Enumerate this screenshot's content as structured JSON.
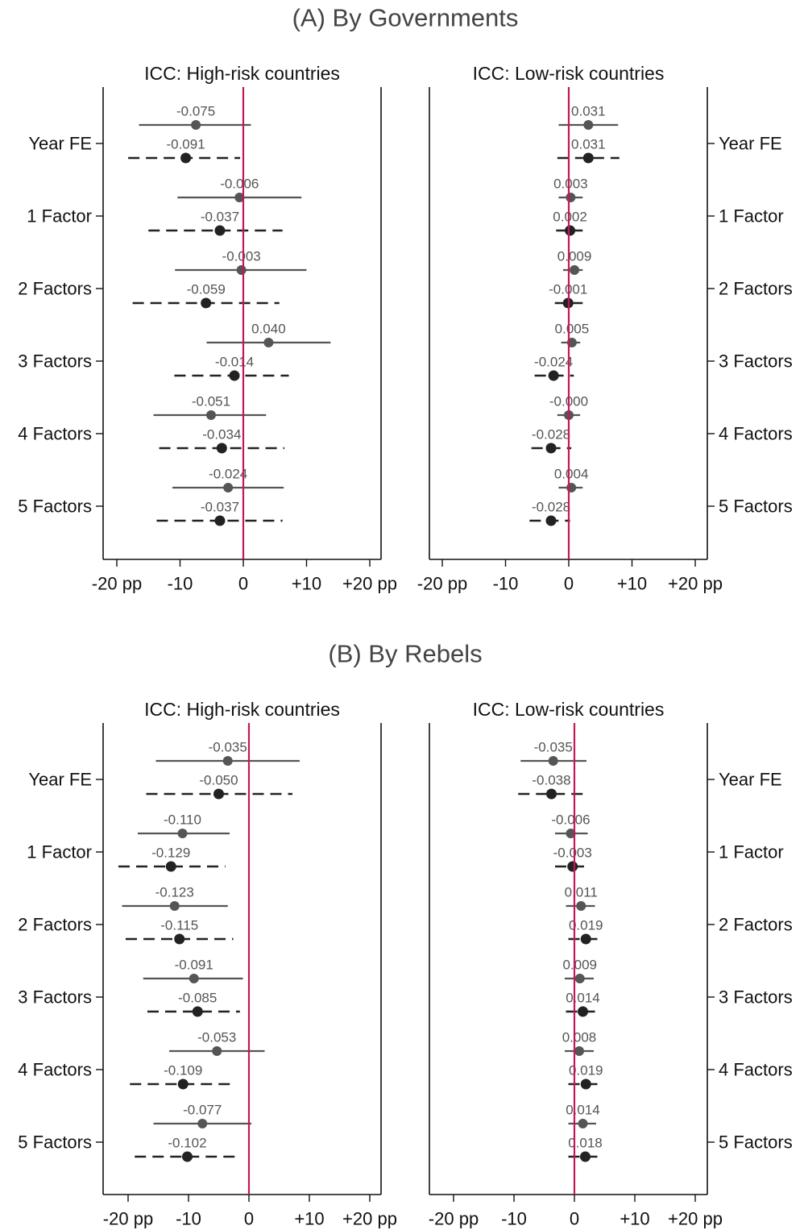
{
  "sections": [
    {
      "title": "(A) By Governments",
      "panels": [
        {
          "title": "ICC: High-risk countries",
          "rows": [
            {
              "label": "Year FE",
              "solid": {
                "est": -0.075,
                "lo": -16.5,
                "hi": 1.2
              },
              "dashed": {
                "est": -0.091,
                "lo": -18.2,
                "hi": -0.5
              }
            },
            {
              "label": "1 Factor",
              "solid": {
                "est": -0.006,
                "lo": -10.4,
                "hi": 9.2
              },
              "dashed": {
                "est": -0.037,
                "lo": -15.0,
                "hi": 6.2
              }
            },
            {
              "label": "2 Factors",
              "solid": {
                "est": -0.003,
                "lo": -10.8,
                "hi": 10.0
              },
              "dashed": {
                "est": -0.059,
                "lo": -17.5,
                "hi": 5.7
              }
            },
            {
              "label": "3 Factors",
              "solid": {
                "est": 0.04,
                "lo": -5.8,
                "hi": 13.8
              },
              "dashed": {
                "est": -0.014,
                "lo": -10.9,
                "hi": 7.2
              }
            },
            {
              "label": "4 Factors",
              "solid": {
                "est": -0.051,
                "lo": -14.2,
                "hi": 3.6
              },
              "dashed": {
                "est": -0.034,
                "lo": -13.3,
                "hi": 6.5
              }
            },
            {
              "label": "5 Factors",
              "solid": {
                "est": -0.024,
                "lo": -11.2,
                "hi": 6.4
              },
              "dashed": {
                "est": -0.037,
                "lo": -13.7,
                "hi": 6.2
              }
            }
          ]
        },
        {
          "title": "ICC: Low-risk countries",
          "rows": [
            {
              "label": "Year FE",
              "solid": {
                "est": 0.031,
                "lo": -1.6,
                "hi": 7.8
              },
              "dashed": {
                "est": 0.031,
                "lo": -1.8,
                "hi": 8.0
              }
            },
            {
              "label": "1 Factor",
              "solid": {
                "est": 0.003,
                "lo": -1.6,
                "hi": 2.2
              },
              "dashed": {
                "est": 0.002,
                "lo": -2.0,
                "hi": 2.2
              }
            },
            {
              "label": "2 Factors",
              "solid": {
                "est": 0.009,
                "lo": -0.9,
                "hi": 2.2
              },
              "dashed": {
                "est": -0.001,
                "lo": -2.2,
                "hi": 2.2
              }
            },
            {
              "label": "3 Factors",
              "solid": {
                "est": 0.005,
                "lo": -1.2,
                "hi": 1.8
              },
              "dashed": {
                "est": -0.024,
                "lo": -5.4,
                "hi": 0.8
              }
            },
            {
              "label": "4 Factors",
              "solid": {
                "est": -0.0,
                "lo": -1.8,
                "hi": 1.8
              },
              "dashed": {
                "est": -0.028,
                "lo": -5.9,
                "hi": 0.4
              }
            },
            {
              "label": "5 Factors",
              "solid": {
                "est": 0.004,
                "lo": -1.6,
                "hi": 2.2
              },
              "dashed": {
                "est": -0.028,
                "lo": -6.2,
                "hi": 0.2
              }
            }
          ]
        }
      ]
    },
    {
      "title": "(B) By Rebels",
      "panels": [
        {
          "title": "ICC: High-risk countries",
          "rows": [
            {
              "label": "Year FE",
              "solid": {
                "est": -0.035,
                "lo": -15.4,
                "hi": 8.4
              },
              "dashed": {
                "est": -0.05,
                "lo": -17.0,
                "hi": 7.2
              }
            },
            {
              "label": "1 Factor",
              "solid": {
                "est": -0.11,
                "lo": -18.4,
                "hi": -3.2
              },
              "dashed": {
                "est": -0.129,
                "lo": -21.6,
                "hi": -3.9
              }
            },
            {
              "label": "2 Factors",
              "solid": {
                "est": -0.123,
                "lo": -21.0,
                "hi": -3.5
              },
              "dashed": {
                "est": -0.115,
                "lo": -20.4,
                "hi": -2.6
              }
            },
            {
              "label": "3 Factors",
              "solid": {
                "est": -0.091,
                "lo": -17.5,
                "hi": -1.0
              },
              "dashed": {
                "est": -0.085,
                "lo": -16.8,
                "hi": -1.5
              }
            },
            {
              "label": "4 Factors",
              "solid": {
                "est": -0.053,
                "lo": -13.2,
                "hi": 2.6
              },
              "dashed": {
                "est": -0.109,
                "lo": -19.7,
                "hi": -2.1
              }
            },
            {
              "label": "5 Factors",
              "solid": {
                "est": -0.077,
                "lo": -15.8,
                "hi": 0.4
              },
              "dashed": {
                "est": -0.102,
                "lo": -18.9,
                "hi": -1.8
              }
            }
          ]
        },
        {
          "title": "ICC: Low-risk countries",
          "rows": [
            {
              "label": "Year FE",
              "solid": {
                "est": -0.035,
                "lo": -8.9,
                "hi": 2.0
              },
              "dashed": {
                "est": -0.038,
                "lo": -9.3,
                "hi": 1.8
              }
            },
            {
              "label": "1 Factor",
              "solid": {
                "est": -0.006,
                "lo": -3.2,
                "hi": 2.2
              },
              "dashed": {
                "est": -0.003,
                "lo": -3.2,
                "hi": 2.2
              }
            },
            {
              "label": "2 Factors",
              "solid": {
                "est": 0.011,
                "lo": -1.4,
                "hi": 3.4
              },
              "dashed": {
                "est": 0.019,
                "lo": -1.0,
                "hi": 4.2
              }
            },
            {
              "label": "3 Factors",
              "solid": {
                "est": 0.009,
                "lo": -1.6,
                "hi": 3.2
              },
              "dashed": {
                "est": 0.014,
                "lo": -1.4,
                "hi": 3.8
              }
            },
            {
              "label": "4 Factors",
              "solid": {
                "est": 0.008,
                "lo": -1.6,
                "hi": 3.2
              },
              "dashed": {
                "est": 0.019,
                "lo": -1.0,
                "hi": 4.2
              }
            },
            {
              "label": "5 Factors",
              "solid": {
                "est": 0.014,
                "lo": -1.0,
                "hi": 3.6
              },
              "dashed": {
                "est": 0.018,
                "lo": -1.0,
                "hi": 4.0
              }
            }
          ]
        }
      ]
    }
  ],
  "x_ticks": [
    {
      "value": -20,
      "label": "-20 pp"
    },
    {
      "value": -10,
      "label": "-10"
    },
    {
      "value": 0,
      "label": "0"
    },
    {
      "value": 10,
      "label": "+10"
    },
    {
      "value": 20,
      "label": "+20 pp"
    }
  ],
  "colors": {
    "zero_line": "#c2185b",
    "solid_series": "#555555",
    "dashed_series": "#222222",
    "frame": "#111111"
  },
  "chart_data": [
    {
      "type": "scatter",
      "title": "(A) By Governments — ICC: High-risk countries",
      "categories": [
        "Year FE",
        "1 Factor",
        "2 Factors",
        "3 Factors",
        "4 Factors",
        "5 Factors"
      ],
      "series": [
        {
          "values": [
            -0.075,
            -0.006,
            -0.003,
            0.04,
            -0.051,
            -0.024
          ]
        },
        {
          "values": [
            -0.091,
            -0.037,
            -0.059,
            -0.014,
            -0.034,
            -0.037
          ]
        }
      ],
      "xlim": [
        -20,
        20
      ]
    },
    {
      "type": "scatter",
      "title": "(A) By Governments — ICC: Low-risk countries",
      "categories": [
        "Year FE",
        "1 Factor",
        "2 Factors",
        "3 Factors",
        "4 Factors",
        "5 Factors"
      ],
      "series": [
        {
          "values": [
            0.031,
            0.003,
            0.009,
            0.005,
            -0.0,
            0.004
          ]
        },
        {
          "values": [
            0.031,
            0.002,
            -0.001,
            -0.024,
            -0.028,
            -0.028
          ]
        }
      ],
      "xlim": [
        -20,
        20
      ]
    },
    {
      "type": "scatter",
      "title": "(B) By Rebels — ICC: High-risk countries",
      "categories": [
        "Year FE",
        "1 Factor",
        "2 Factors",
        "3 Factors",
        "4 Factors",
        "5 Factors"
      ],
      "series": [
        {
          "values": [
            -0.035,
            -0.11,
            -0.123,
            -0.091,
            -0.053,
            -0.077
          ]
        },
        {
          "values": [
            -0.05,
            -0.129,
            -0.115,
            -0.085,
            -0.109,
            -0.102
          ]
        }
      ],
      "xlim": [
        -20,
        20
      ]
    },
    {
      "type": "scatter",
      "title": "(B) By Rebels — ICC: Low-risk countries",
      "categories": [
        "Year FE",
        "1 Factor",
        "2 Factors",
        "3 Factors",
        "4 Factors",
        "5 Factors"
      ],
      "series": [
        {
          "values": [
            -0.035,
            -0.006,
            0.011,
            0.009,
            0.008,
            0.014
          ]
        },
        {
          "values": [
            -0.038,
            -0.003,
            0.019,
            0.014,
            0.019,
            0.018
          ]
        }
      ],
      "xlim": [
        -20,
        20
      ]
    }
  ]
}
